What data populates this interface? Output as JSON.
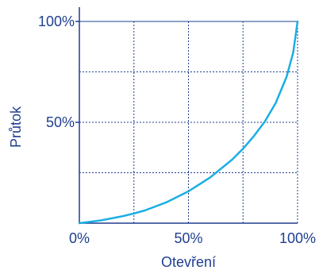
{
  "chart_data": {
    "type": "line",
    "title": "",
    "xlabel": "Otevření",
    "ylabel": "Průtok",
    "xlim": [
      0,
      100
    ],
    "ylim": [
      0,
      100
    ],
    "x_ticks": [
      "0%",
      "50%",
      "100%"
    ],
    "y_ticks": [
      "50%",
      "100%"
    ],
    "grid": true,
    "series": [
      {
        "x": [
          0,
          10,
          20,
          25,
          30,
          40,
          50,
          60,
          70,
          75,
          80,
          85,
          90,
          95,
          98,
          100
        ],
        "y": [
          0,
          1.4,
          3.5,
          4.8,
          6.3,
          10.4,
          15.8,
          22.7,
          31.5,
          36.9,
          43.2,
          50.4,
          59.6,
          72.7,
          84.6,
          100
        ]
      }
    ]
  },
  "colors": {
    "curve": "#1aaee5",
    "axis_text": "#1f3f8f",
    "frame": "#1f3f8f",
    "grid": "#1f3f8f"
  }
}
